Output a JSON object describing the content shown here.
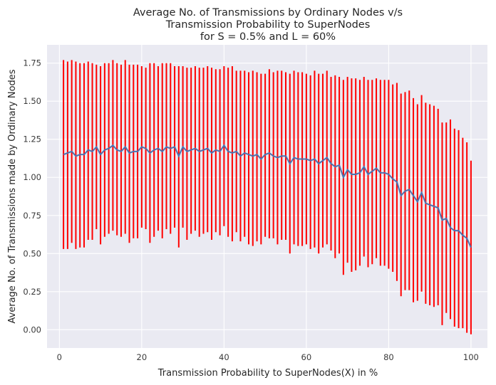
{
  "chart_data": {
    "type": "line",
    "title_lines": [
      "Average No. of Transmissions by Ordinary Nodes v/s",
      "Transmission Probability to SuperNodes",
      "for S = 0.5% and L = 60%"
    ],
    "xlabel": "Transmission Probability to SuperNodes(X) in %",
    "ylabel": "Average No. of Transmissions made by Ordinary Nodes",
    "xlim": [
      -3,
      104
    ],
    "ylim": [
      -0.12,
      1.87
    ],
    "xticks": [
      0,
      20,
      40,
      60,
      80,
      100
    ],
    "yticks": [
      0.0,
      0.25,
      0.5,
      0.75,
      1.0,
      1.25,
      1.5,
      1.75
    ],
    "ytick_labels": [
      "0.00",
      "0.25",
      "0.50",
      "0.75",
      "1.00",
      "1.25",
      "1.50",
      "1.75"
    ],
    "grid": true,
    "background": "#eaeaf2",
    "line_color": "#4c72b0",
    "errorbar_color": "#ff0000",
    "x": [
      1,
      2,
      3,
      4,
      5,
      6,
      7,
      8,
      9,
      10,
      11,
      12,
      13,
      14,
      15,
      16,
      17,
      18,
      19,
      20,
      21,
      22,
      23,
      24,
      25,
      26,
      27,
      28,
      29,
      30,
      31,
      32,
      33,
      34,
      35,
      36,
      37,
      38,
      39,
      40,
      41,
      42,
      43,
      44,
      45,
      46,
      47,
      48,
      49,
      50,
      51,
      52,
      53,
      54,
      55,
      56,
      57,
      58,
      59,
      60,
      61,
      62,
      63,
      64,
      65,
      66,
      67,
      68,
      69,
      70,
      71,
      72,
      73,
      74,
      75,
      76,
      77,
      78,
      79,
      80,
      81,
      82,
      83,
      84,
      85,
      86,
      87,
      88,
      89,
      90,
      91,
      92,
      93,
      94,
      95,
      96,
      97,
      98,
      99,
      100
    ],
    "mean": [
      1.15,
      1.16,
      1.17,
      1.14,
      1.15,
      1.15,
      1.18,
      1.17,
      1.2,
      1.15,
      1.18,
      1.19,
      1.21,
      1.18,
      1.17,
      1.2,
      1.16,
      1.17,
      1.17,
      1.2,
      1.19,
      1.16,
      1.18,
      1.19,
      1.17,
      1.2,
      1.19,
      1.2,
      1.14,
      1.2,
      1.17,
      1.18,
      1.19,
      1.17,
      1.18,
      1.19,
      1.16,
      1.18,
      1.17,
      1.21,
      1.17,
      1.16,
      1.17,
      1.14,
      1.16,
      1.15,
      1.14,
      1.15,
      1.12,
      1.15,
      1.16,
      1.14,
      1.13,
      1.14,
      1.14,
      1.09,
      1.13,
      1.12,
      1.12,
      1.12,
      1.11,
      1.12,
      1.09,
      1.11,
      1.13,
      1.09,
      1.07,
      1.08,
      1.0,
      1.05,
      1.02,
      1.02,
      1.03,
      1.07,
      1.02,
      1.04,
      1.06,
      1.03,
      1.03,
      1.02,
      0.99,
      0.97,
      0.88,
      0.91,
      0.92,
      0.88,
      0.84,
      0.9,
      0.83,
      0.82,
      0.81,
      0.8,
      0.72,
      0.73,
      0.67,
      0.65,
      0.65,
      0.62,
      0.6,
      0.54
    ],
    "upper": [
      1.77,
      1.76,
      1.77,
      1.76,
      1.75,
      1.75,
      1.76,
      1.75,
      1.74,
      1.73,
      1.75,
      1.75,
      1.77,
      1.75,
      1.74,
      1.77,
      1.74,
      1.74,
      1.74,
      1.73,
      1.72,
      1.75,
      1.75,
      1.73,
      1.75,
      1.75,
      1.75,
      1.73,
      1.73,
      1.73,
      1.72,
      1.72,
      1.73,
      1.72,
      1.72,
      1.73,
      1.72,
      1.71,
      1.71,
      1.73,
      1.72,
      1.73,
      1.7,
      1.7,
      1.7,
      1.69,
      1.7,
      1.69,
      1.68,
      1.68,
      1.71,
      1.69,
      1.7,
      1.7,
      1.69,
      1.68,
      1.7,
      1.69,
      1.69,
      1.68,
      1.67,
      1.7,
      1.68,
      1.68,
      1.7,
      1.66,
      1.67,
      1.66,
      1.64,
      1.66,
      1.65,
      1.65,
      1.64,
      1.66,
      1.64,
      1.64,
      1.65,
      1.64,
      1.64,
      1.64,
      1.61,
      1.62,
      1.55,
      1.56,
      1.57,
      1.52,
      1.48,
      1.54,
      1.49,
      1.48,
      1.47,
      1.45,
      1.36,
      1.36,
      1.38,
      1.32,
      1.31,
      1.26,
      1.23,
      1.11
    ],
    "lower": [
      0.53,
      0.53,
      0.57,
      0.53,
      0.54,
      0.54,
      0.59,
      0.59,
      0.66,
      0.56,
      0.61,
      0.63,
      0.65,
      0.62,
      0.61,
      0.63,
      0.57,
      0.6,
      0.6,
      0.67,
      0.66,
      0.57,
      0.61,
      0.65,
      0.6,
      0.66,
      0.63,
      0.67,
      0.54,
      0.67,
      0.59,
      0.63,
      0.65,
      0.61,
      0.63,
      0.64,
      0.59,
      0.64,
      0.62,
      0.68,
      0.61,
      0.58,
      0.64,
      0.58,
      0.61,
      0.56,
      0.55,
      0.58,
      0.56,
      0.61,
      0.6,
      0.6,
      0.56,
      0.59,
      0.59,
      0.5,
      0.56,
      0.55,
      0.55,
      0.56,
      0.53,
      0.54,
      0.5,
      0.54,
      0.56,
      0.52,
      0.47,
      0.5,
      0.36,
      0.44,
      0.38,
      0.39,
      0.42,
      0.48,
      0.41,
      0.43,
      0.47,
      0.42,
      0.42,
      0.4,
      0.38,
      0.32,
      0.22,
      0.26,
      0.26,
      0.18,
      0.19,
      0.25,
      0.17,
      0.16,
      0.15,
      0.16,
      0.03,
      0.11,
      0.07,
      0.02,
      0.01,
      0.01,
      -0.02,
      -0.03
    ]
  }
}
